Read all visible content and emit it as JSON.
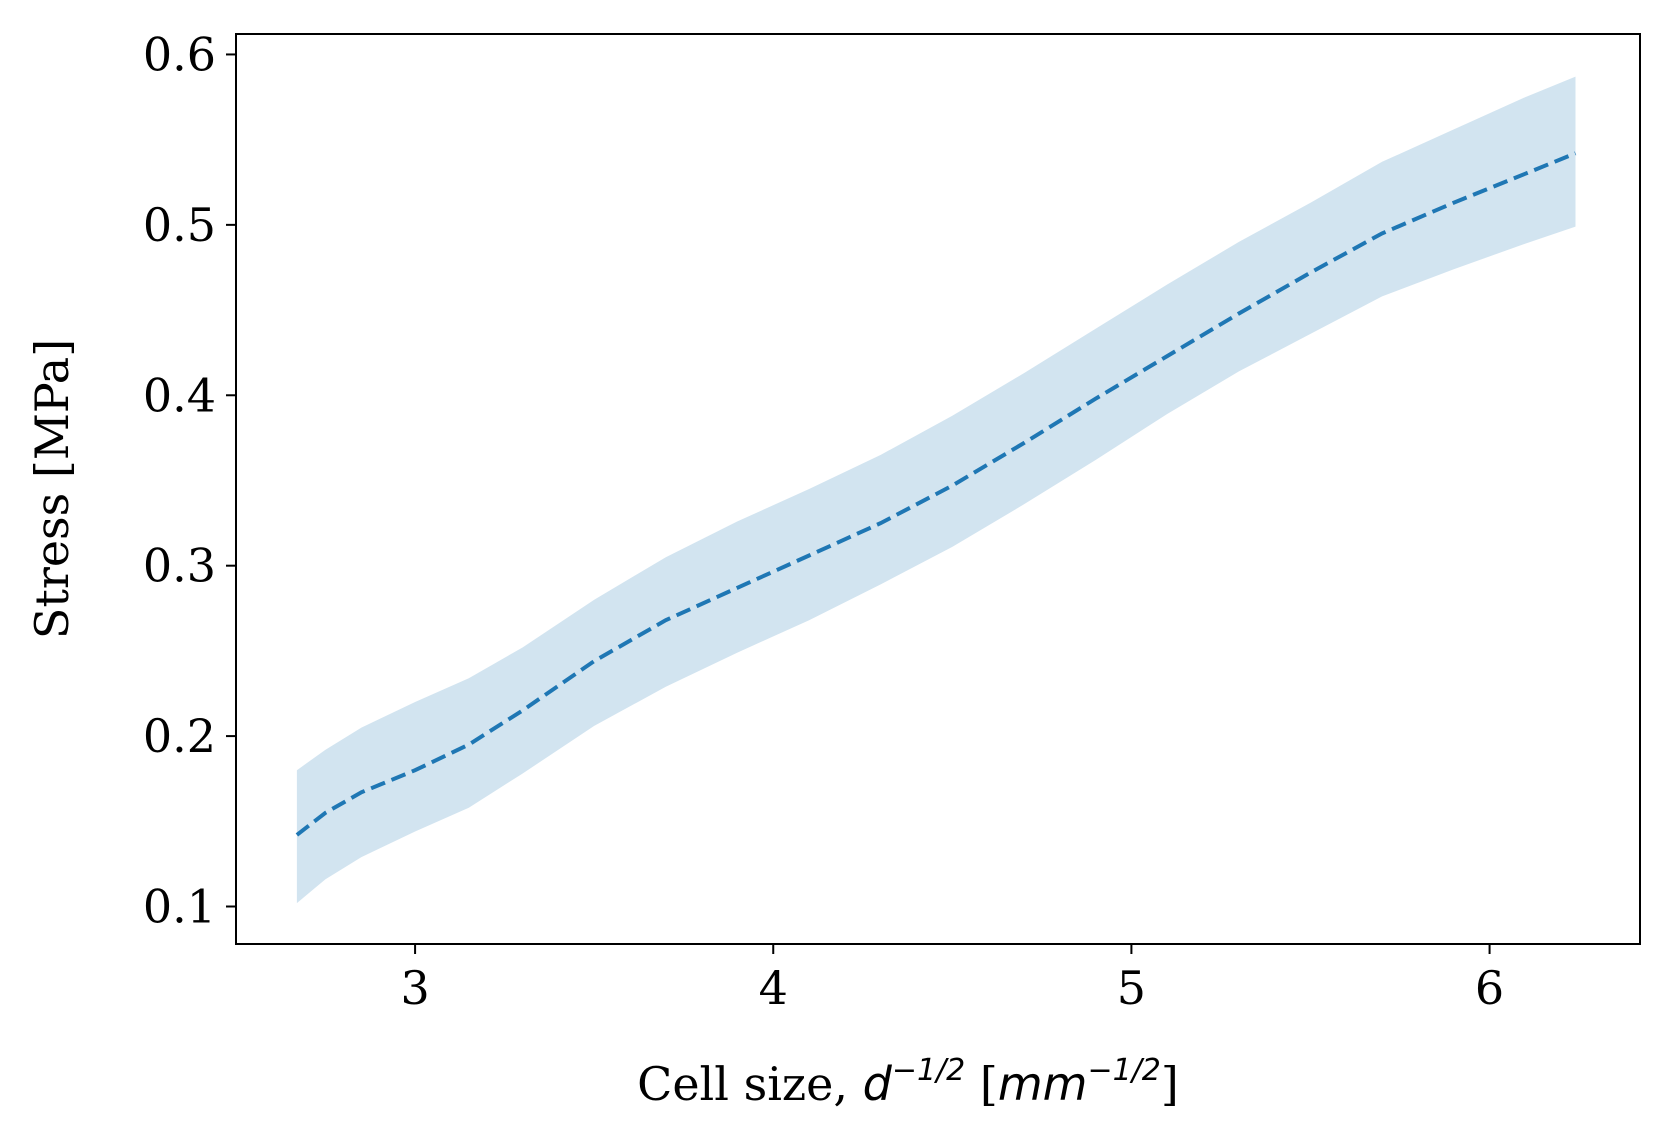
{
  "chart_data": {
    "type": "line",
    "title": "",
    "xlabel": {
      "prefix": "Cell size, ",
      "var": "d",
      "var_sup": "−1/2",
      "unit_open": " [",
      "unit": "mm",
      "unit_sup": "−1/2",
      "unit_close": "]"
    },
    "ylabel": "Stress [MPa]",
    "xlim": [
      2.5,
      6.42
    ],
    "ylim": [
      0.078,
      0.612
    ],
    "xticks": [
      3,
      4,
      5,
      6
    ],
    "xtick_labels": [
      "3",
      "4",
      "5",
      "6"
    ],
    "yticks": [
      0.1,
      0.2,
      0.3,
      0.4,
      0.5,
      0.6
    ],
    "ytick_labels": [
      "0.1",
      "0.2",
      "0.3",
      "0.4",
      "0.5",
      "0.6"
    ],
    "grid": false,
    "series": [
      {
        "style": "dashed",
        "color": "#1f77b4",
        "band_color": "#1f77b4",
        "band_opacity": 0.2,
        "x": [
          2.67,
          2.75,
          2.85,
          3.0,
          3.15,
          3.3,
          3.5,
          3.7,
          3.9,
          4.1,
          4.3,
          4.5,
          4.7,
          4.9,
          5.1,
          5.3,
          5.5,
          5.7,
          5.9,
          6.1,
          6.24
        ],
        "y": [
          0.142,
          0.155,
          0.167,
          0.18,
          0.195,
          0.215,
          0.244,
          0.268,
          0.287,
          0.306,
          0.325,
          0.347,
          0.372,
          0.398,
          0.423,
          0.448,
          0.472,
          0.495,
          0.513,
          0.53,
          0.542
        ],
        "lower": [
          0.102,
          0.116,
          0.129,
          0.144,
          0.158,
          0.178,
          0.206,
          0.229,
          0.249,
          0.268,
          0.289,
          0.311,
          0.336,
          0.362,
          0.389,
          0.414,
          0.436,
          0.458,
          0.474,
          0.489,
          0.499
        ],
        "upper": [
          0.18,
          0.192,
          0.205,
          0.22,
          0.234,
          0.252,
          0.28,
          0.305,
          0.326,
          0.345,
          0.365,
          0.388,
          0.413,
          0.439,
          0.465,
          0.49,
          0.513,
          0.537,
          0.556,
          0.575,
          0.587
        ]
      }
    ]
  }
}
